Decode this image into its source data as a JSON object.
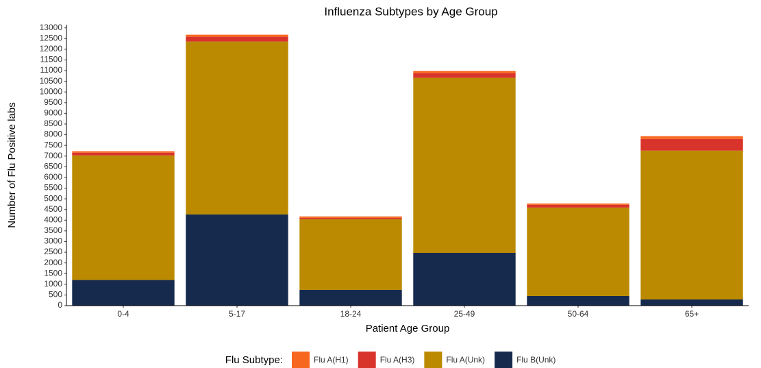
{
  "chart_data": {
    "type": "stacked_bar",
    "title": "Influenza Subtypes by Age Group",
    "x_label": "Patient Age Group",
    "y_label": "Number of Flu Positive labs",
    "legend_title": "Flu Subtype:",
    "categories": [
      "0-4",
      "5-17",
      "18-24",
      "25-49",
      "50-64",
      "65+"
    ],
    "series": [
      {
        "name": "Flu A(H1)",
        "color": "#f8671f",
        "values": [
          65,
          95,
          65,
          100,
          60,
          130
        ]
      },
      {
        "name": "Flu A(H3)",
        "color": "#d9342b",
        "values": [
          130,
          225,
          65,
          220,
          130,
          545
        ]
      },
      {
        "name": "Flu A(Unk)",
        "color": "#bb8a00",
        "values": [
          5830,
          8090,
          3305,
          8190,
          4140,
          6965
        ]
      },
      {
        "name": "Flu B(Unk)",
        "color": "#162a4e",
        "values": [
          1200,
          4270,
          740,
          2470,
          450,
          290
        ]
      }
    ],
    "ylim": [
      0,
      13150
    ],
    "yticks": [
      0,
      500,
      1000,
      1500,
      2000,
      2500,
      3000,
      3500,
      4000,
      4500,
      5000,
      5500,
      6000,
      6500,
      7000,
      7500,
      8000,
      8500,
      9000,
      9500,
      10000,
      10500,
      11000,
      11500,
      12000,
      12500,
      13000
    ],
    "grid": false,
    "legend_position": "bottom"
  }
}
